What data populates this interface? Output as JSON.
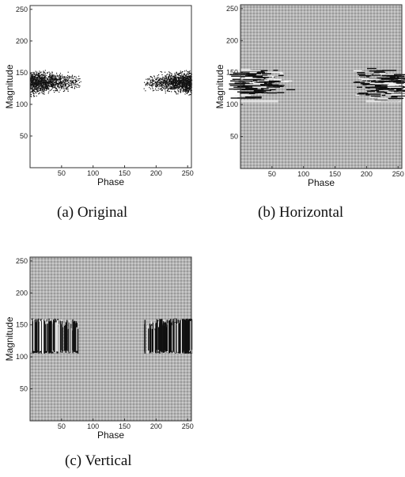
{
  "chart_data": [
    {
      "type": "heatmap",
      "panel": "a",
      "caption": "(a) Original",
      "title": "",
      "xlabel": "Phase",
      "ylabel": "Magnitude",
      "xlim": [
        0,
        256
      ],
      "ylim": [
        0,
        256
      ],
      "xticks": [
        50,
        100,
        150,
        200,
        250
      ],
      "yticks": [
        50,
        100,
        150,
        200,
        250
      ],
      "background": "white",
      "grid": false,
      "regions": [
        {
          "x": [
            0,
            80
          ],
          "y": [
            110,
            160
          ],
          "density": "dense-sparse",
          "texture": "points"
        },
        {
          "x": [
            180,
            256
          ],
          "y": [
            110,
            160
          ],
          "density": "sparse-dense",
          "texture": "points"
        }
      ]
    },
    {
      "type": "heatmap",
      "panel": "b",
      "caption": "(b) Horizontal",
      "title": "",
      "xlabel": "Phase",
      "ylabel": "Magnitude",
      "xlim": [
        0,
        256
      ],
      "ylim": [
        0,
        256
      ],
      "xticks": [
        50,
        100,
        150,
        200,
        250
      ],
      "yticks": [
        50,
        100,
        150,
        200,
        250
      ],
      "background": "gray-noise",
      "grid": false,
      "regions": [
        {
          "x": [
            0,
            80
          ],
          "y": [
            105,
            160
          ],
          "density": "dense-sparse",
          "texture": "horizontal-streaks"
        },
        {
          "x": [
            180,
            256
          ],
          "y": [
            105,
            160
          ],
          "density": "sparse-dense",
          "texture": "horizontal-streaks"
        }
      ]
    },
    {
      "type": "heatmap",
      "panel": "c",
      "caption": "(c) Vertical",
      "title": "",
      "xlabel": "Phase",
      "ylabel": "Magnitude",
      "xlim": [
        0,
        256
      ],
      "ylim": [
        0,
        256
      ],
      "xticks": [
        50,
        100,
        150,
        200,
        250
      ],
      "yticks": [
        50,
        100,
        150,
        200,
        250
      ],
      "background": "gray-noise",
      "grid": false,
      "regions": [
        {
          "x": [
            0,
            80
          ],
          "y": [
            105,
            160
          ],
          "density": "dense-sparse",
          "texture": "vertical-streaks"
        },
        {
          "x": [
            180,
            256
          ],
          "y": [
            105,
            160
          ],
          "density": "sparse-dense",
          "texture": "vertical-streaks"
        }
      ]
    }
  ]
}
